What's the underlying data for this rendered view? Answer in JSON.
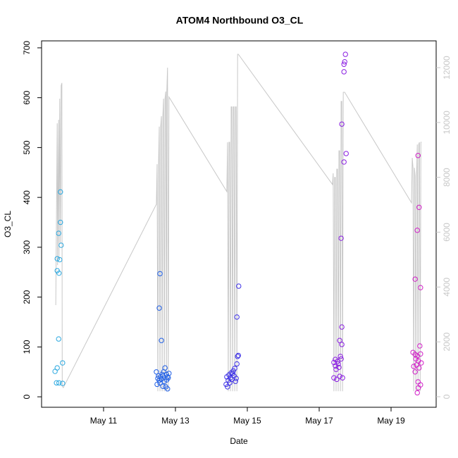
{
  "chart_data": {
    "type": "scatter",
    "title": "ATOM4 Northbound O3_CL",
    "x_label": "Date",
    "y_label": "O3_CL",
    "xlim": [
      9.275,
      20.255
    ],
    "xticks": [
      {
        "value": 11,
        "label": "May 11"
      },
      {
        "value": 13,
        "label": "May 13"
      },
      {
        "value": 15,
        "label": "May 15"
      },
      {
        "value": 17,
        "label": "May 17"
      },
      {
        "value": 19,
        "label": "May 19"
      }
    ],
    "ylim": [
      -21,
      714
    ],
    "yticks": [
      0,
      100,
      200,
      300,
      400,
      500,
      600,
      700
    ],
    "y2lim": [
      -385,
      12977
    ],
    "y2ticks": [
      0,
      2000,
      4000,
      6000,
      8000,
      10000,
      12000
    ],
    "y2_color": "#c8c8c8",
    "series": [
      {
        "type": "scatter",
        "color": "#2aa8e0",
        "x": [
          9.8,
          9.8,
          9.75,
          9.82,
          9.71,
          9.78,
          9.71,
          9.76,
          9.75,
          9.71,
          9.65,
          9.86,
          9.69,
          9.76,
          9.86
        ],
        "values": [
          411,
          350,
          328,
          304,
          277,
          275,
          253,
          248,
          116,
          58,
          51,
          68,
          28,
          28,
          27
        ]
      },
      {
        "type": "scatter",
        "color": "#1f5fe6",
        "x": [
          12.57,
          12.55,
          12.61,
          12.47,
          12.51,
          12.55,
          12.59,
          12.63,
          12.67,
          12.71,
          12.75,
          12.78,
          12.82,
          12.49,
          12.57,
          12.65,
          12.73,
          12.78,
          12.53,
          12.61,
          12.69,
          12.76,
          12.8,
          12.65
        ],
        "values": [
          247,
          178,
          113,
          50,
          37,
          33,
          40,
          45,
          50,
          58,
          45,
          40,
          47,
          25,
          28,
          21,
          20,
          16,
          42,
          35,
          31,
          34,
          38,
          42
        ]
      },
      {
        "type": "scatter",
        "color": "#3a2ee6",
        "x": [
          14.76,
          14.71,
          14.75,
          14.73,
          14.71,
          14.65,
          14.59,
          14.53,
          14.47,
          14.41,
          14.45,
          14.51,
          14.57,
          14.63,
          14.67,
          14.43,
          14.49,
          14.55,
          14.61,
          14.69
        ],
        "values": [
          222,
          160,
          83,
          81,
          66,
          57,
          47,
          38,
          33,
          25,
          20,
          28,
          35,
          42,
          31,
          40,
          44,
          48,
          52,
          37
        ]
      },
      {
        "type": "scatter",
        "color": "#8a1ee2",
        "x": [
          17.73,
          17.71,
          17.69,
          17.69,
          17.63,
          17.69,
          17.75,
          17.61,
          17.63,
          17.57,
          17.63,
          17.59,
          17.45,
          17.41,
          17.45,
          17.51,
          17.55,
          17.41,
          17.49,
          17.57,
          17.65,
          17.53,
          17.61,
          17.47
        ],
        "values": [
          687,
          672,
          667,
          652,
          547,
          471,
          488,
          318,
          140,
          113,
          105,
          81,
          75,
          69,
          62,
          71,
          59,
          38,
          35,
          41,
          38,
          66,
          76,
          55
        ]
      },
      {
        "type": "scatter",
        "color": "#d21ec8",
        "x": [
          19.75,
          19.78,
          19.73,
          19.67,
          19.82,
          19.8,
          19.61,
          19.67,
          19.73,
          19.82,
          19.69,
          19.76,
          19.84,
          19.71,
          19.63,
          19.78,
          19.67,
          19.75,
          19.82,
          19.76,
          19.73
        ],
        "values": [
          484,
          380,
          334,
          236,
          219,
          102,
          89,
          85,
          82,
          86,
          76,
          72,
          68,
          64,
          61,
          58,
          50,
          30,
          24,
          18,
          8
        ]
      },
      {
        "type": "line",
        "axis": "y2",
        "color": "#c8c8c8",
        "x": [
          9.67,
          9.71,
          9.72,
          9.75,
          9.76,
          9.78,
          9.8,
          9.82,
          9.84,
          9.85,
          9.88,
          12.47,
          12.49,
          12.51,
          12.53,
          12.55,
          12.57,
          12.59,
          12.61,
          12.63,
          12.65,
          12.67,
          12.69,
          12.71,
          12.73,
          12.75,
          12.76,
          12.78,
          12.8,
          12.82,
          14.43,
          14.45,
          14.47,
          14.49,
          14.51,
          14.53,
          14.55,
          14.57,
          14.59,
          14.61,
          14.63,
          14.65,
          14.67,
          14.69,
          14.71,
          14.73,
          14.75,
          17.37,
          17.39,
          17.41,
          17.43,
          17.45,
          17.47,
          17.49,
          17.51,
          17.53,
          17.55,
          17.57,
          17.59,
          17.61,
          17.63,
          17.65,
          17.67,
          17.71,
          19.57,
          19.59,
          19.61,
          19.63,
          19.65,
          19.67,
          19.69,
          19.71,
          19.73,
          19.75,
          19.77,
          19.79,
          19.81,
          19.83,
          19.85
        ],
        "values": [
          3340,
          9970,
          4800,
          10100,
          5000,
          10870,
          5600,
          11340,
          11440,
          390,
          330,
          7020,
          8480,
          200,
          8480,
          9850,
          200,
          9850,
          10230,
          200,
          10230,
          10870,
          200,
          10870,
          11130,
          200,
          11130,
          12000,
          200,
          10930,
          7480,
          9280,
          200,
          9280,
          9280,
          200,
          10570,
          10570,
          200,
          10570,
          10570,
          200,
          10570,
          10570,
          200,
          12490,
          12490,
          7740,
          8150,
          200,
          8000,
          8000,
          200,
          8300,
          8300,
          200,
          8970,
          8970,
          200,
          10770,
          10770,
          200,
          11100,
          11100,
          7070,
          8710,
          8350,
          200,
          8350,
          8050,
          200,
          8050,
          9200,
          200,
          9200,
          9280,
          200,
          9280,
          9280
        ]
      }
    ]
  }
}
